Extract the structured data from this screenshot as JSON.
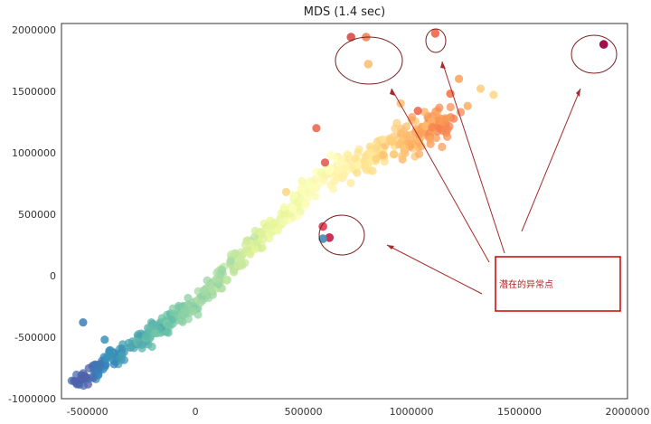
{
  "chart_data": {
    "type": "scatter",
    "title": "MDS (1.4 sec)",
    "xlabel": "",
    "ylabel": "",
    "xlim": [
      -620000,
      2000000
    ],
    "ylim": [
      -1000000,
      2050000
    ],
    "x_ticks": [
      -500000,
      0,
      500000,
      1000000,
      1500000,
      2000000
    ],
    "x_tick_labels": [
      "-500000",
      "0",
      "500000",
      "1000000",
      "1500000",
      "2000000"
    ],
    "y_ticks": [
      -1000000,
      -500000,
      0,
      500000,
      1000000,
      1500000,
      2000000
    ],
    "y_tick_labels": [
      "-1000000",
      "-500000",
      "0",
      "500000",
      "1000000",
      "1500000",
      "2000000"
    ],
    "colormap": "Spectral",
    "grid": false,
    "highlighted_points": [
      {
        "x": 720000,
        "y": 1940000,
        "color": "#d9534f"
      },
      {
        "x": 790000,
        "y": 1940000,
        "color": "#f08a5d"
      },
      {
        "x": 800000,
        "y": 1720000,
        "color": "#fbc37a"
      },
      {
        "x": 1110000,
        "y": 1970000,
        "color": "#f26c4f"
      },
      {
        "x": 1890000,
        "y": 1880000,
        "color": "#9e0142"
      },
      {
        "x": 590000,
        "y": 400000,
        "color": "#e6405a"
      },
      {
        "x": 620000,
        "y": 310000,
        "color": "#c8274e"
      },
      {
        "x": 590000,
        "y": 300000,
        "color": "#4a8fb8"
      }
    ],
    "annotation": {
      "text": "潜在的异常点",
      "border_color": "#cc0000",
      "arrow_color": "#a52a2a"
    }
  }
}
